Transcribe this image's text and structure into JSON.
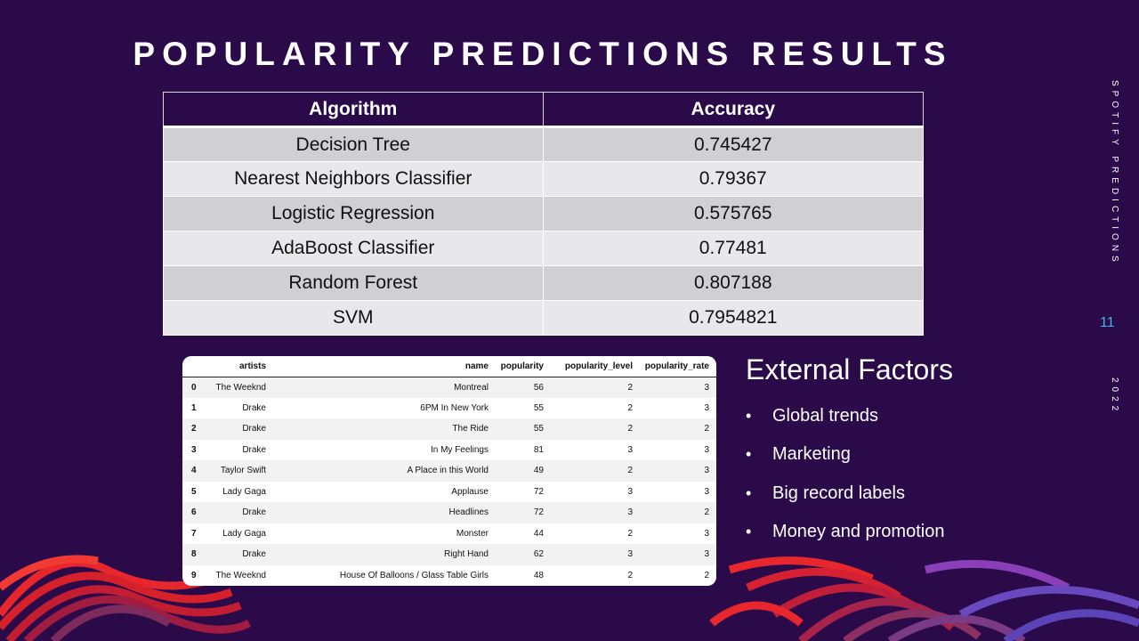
{
  "slide": {
    "title": "POPULARITY PREDICTIONS RESULTS",
    "side_label": "SPOTIFY PREDICTIONS",
    "page_number": "11",
    "year": "2022"
  },
  "results_table": {
    "headers": [
      "Algorithm",
      "Accuracy"
    ],
    "rows": [
      {
        "algorithm": "Decision Tree",
        "accuracy": "0.745427"
      },
      {
        "algorithm": "Nearest Neighbors Classifier",
        "accuracy": "0.79367"
      },
      {
        "algorithm": "Logistic Regression",
        "accuracy": "0.575765"
      },
      {
        "algorithm": "AdaBoost Classifier",
        "accuracy": "0.77481"
      },
      {
        "algorithm": "Random Forest",
        "accuracy": "0.807188"
      },
      {
        "algorithm": "SVM",
        "accuracy": "0.7954821"
      }
    ]
  },
  "dataframe": {
    "headers": [
      "",
      "artists",
      "name",
      "popularity",
      "popularity_level",
      "popularity_rate"
    ],
    "rows": [
      [
        "0",
        "The Weeknd",
        "Montreal",
        "56",
        "2",
        "3"
      ],
      [
        "1",
        "Drake",
        "6PM In New York",
        "55",
        "2",
        "3"
      ],
      [
        "2",
        "Drake",
        "The Ride",
        "55",
        "2",
        "2"
      ],
      [
        "3",
        "Drake",
        "In My Feelings",
        "81",
        "3",
        "3"
      ],
      [
        "4",
        "Taylor Swift",
        "A Place in this World",
        "49",
        "2",
        "3"
      ],
      [
        "5",
        "Lady Gaga",
        "Applause",
        "72",
        "3",
        "3"
      ],
      [
        "6",
        "Drake",
        "Headlines",
        "72",
        "3",
        "2"
      ],
      [
        "7",
        "Lady Gaga",
        "Monster",
        "44",
        "2",
        "3"
      ],
      [
        "8",
        "Drake",
        "Right Hand",
        "62",
        "3",
        "3"
      ],
      [
        "9",
        "The Weeknd",
        "House Of Balloons / Glass Table Girls",
        "48",
        "2",
        "2"
      ]
    ]
  },
  "external_factors": {
    "heading": "External Factors",
    "bullet_glyph": "•",
    "items": [
      "Global trends",
      "Marketing",
      "Big record labels",
      "Money and promotion"
    ]
  },
  "colors": {
    "background": "#2b0a4a",
    "accent_page_number": "#3bb4e6",
    "ribbon_red": "#e8262d",
    "ribbon_purple": "#8a3fb8"
  }
}
